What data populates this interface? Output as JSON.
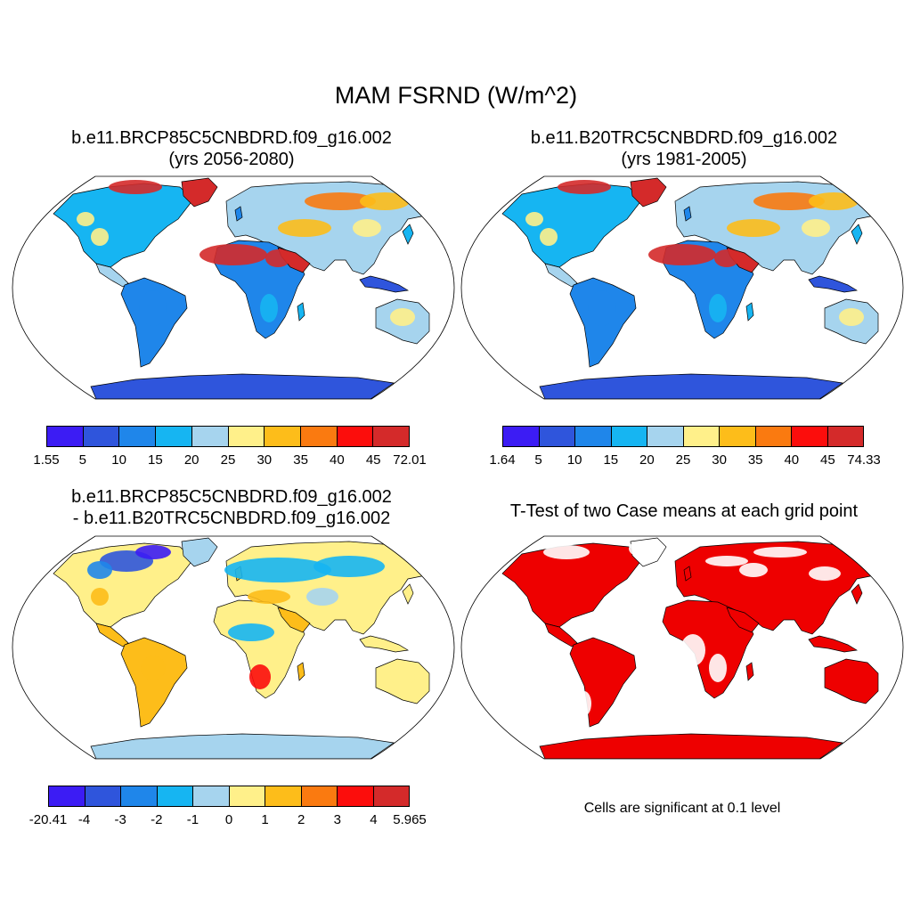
{
  "figure": {
    "title": "MAM FSRND (W/m^2)"
  },
  "panels": [
    {
      "id": "p1",
      "title_line1": "b.e11.BRCP85C5CNBDRD.f09_g16.002",
      "title_line2": "(yrs 2056-2080)",
      "colorbar_labels": [
        "1.55",
        "5",
        "10",
        "15",
        "20",
        "25",
        "30",
        "35",
        "40",
        "45",
        "72.01"
      ]
    },
    {
      "id": "p2",
      "title_line1": "b.e11.B20TRC5CNBDRD.f09_g16.002",
      "title_line2": "(yrs 1981-2005)",
      "colorbar_labels": [
        "1.64",
        "5",
        "10",
        "15",
        "20",
        "25",
        "30",
        "35",
        "40",
        "45",
        "74.33"
      ]
    },
    {
      "id": "p3",
      "title_line1": "b.e11.BRCP85C5CNBDRD.f09_g16.002",
      "title_line2": "- b.e11.B20TRC5CNBDRD.f09_g16.002",
      "colorbar_labels": [
        "-20.41",
        "-4",
        "-3",
        "-2",
        "-1",
        "0",
        "1",
        "2",
        "3",
        "4",
        "5.965"
      ]
    },
    {
      "id": "p4",
      "title_line1": "T-Test of two Case means at each grid point",
      "note": "Cells are significant at 0.1 level"
    }
  ],
  "colorbar_colors": [
    "#3c1cf4",
    "#2f55dc",
    "#1f86ea",
    "#16b5f2",
    "#a6d4ee",
    "#fff08a",
    "#fdbd1a",
    "#fa7a10",
    "#fc0d0c",
    "#d42a2a"
  ],
  "significance_color": "#ee0000",
  "coastline_color": "#000000"
}
